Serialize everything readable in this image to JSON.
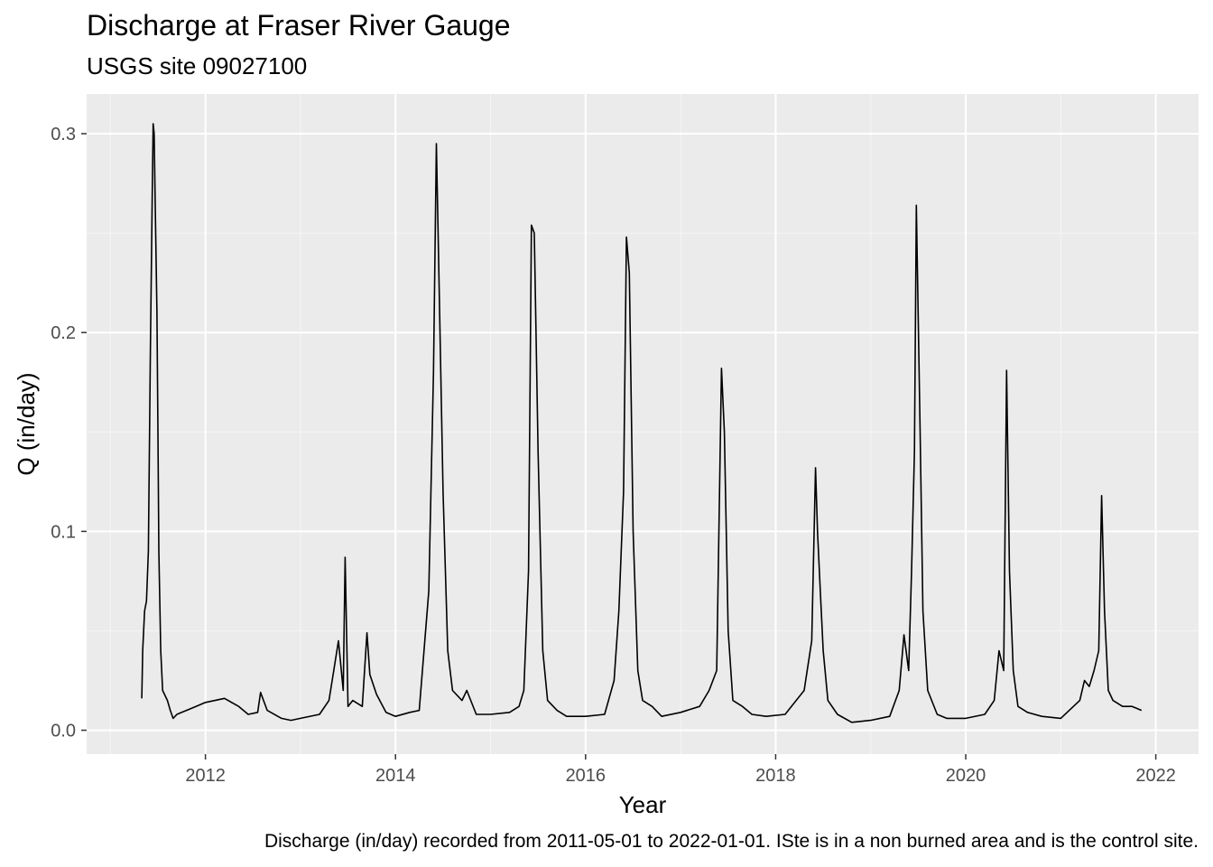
{
  "chart_data": {
    "type": "line",
    "title": "Discharge at Fraser River Gauge",
    "subtitle": "USGS site 09027100",
    "xlabel": "Year",
    "ylabel": "Q (in/day)",
    "caption": "Discharge (in/day) recorded from 2011-05-01 to 2022-01-01. ISte is in a non burned area and is the control site.",
    "xlim": [
      2010.75,
      2022.45
    ],
    "ylim": [
      -0.012,
      0.32
    ],
    "x_ticks": [
      2012,
      2014,
      2016,
      2018,
      2020,
      2022
    ],
    "x_tick_labels": [
      "2012",
      "2014",
      "2016",
      "2018",
      "2020",
      "2022"
    ],
    "y_ticks": [
      0.0,
      0.1,
      0.2,
      0.3
    ],
    "y_tick_labels": [
      "0.0",
      "0.1",
      "0.2",
      "0.3"
    ],
    "grid": true,
    "series": [
      {
        "color": "#000000",
        "x": [
          2011.33,
          2011.34,
          2011.36,
          2011.38,
          2011.4,
          2011.42,
          2011.44,
          2011.45,
          2011.46,
          2011.47,
          2011.49,
          2011.5,
          2011.51,
          2011.53,
          2011.55,
          2011.57,
          2011.6,
          2011.63,
          2011.66,
          2011.7,
          2011.75,
          2011.8,
          2011.9,
          2012.0,
          2012.2,
          2012.35,
          2012.45,
          2012.55,
          2012.58,
          2012.65,
          2012.8,
          2012.9,
          2013.0,
          2013.2,
          2013.3,
          2013.35,
          2013.4,
          2013.45,
          2013.47,
          2013.5,
          2013.55,
          2013.65,
          2013.7,
          2013.73,
          2013.8,
          2013.9,
          2014.0,
          2014.15,
          2014.25,
          2014.3,
          2014.35,
          2014.4,
          2014.43,
          2014.46,
          2014.5,
          2014.55,
          2014.6,
          2014.7,
          2014.75,
          2014.85,
          2015.0,
          2015.2,
          2015.3,
          2015.35,
          2015.4,
          2015.43,
          2015.46,
          2015.5,
          2015.55,
          2015.6,
          2015.7,
          2015.8,
          2016.0,
          2016.2,
          2016.3,
          2016.35,
          2016.4,
          2016.43,
          2016.46,
          2016.5,
          2016.55,
          2016.6,
          2016.7,
          2016.8,
          2017.0,
          2017.2,
          2017.3,
          2017.38,
          2017.43,
          2017.46,
          2017.5,
          2017.55,
          2017.65,
          2017.75,
          2017.9,
          2018.1,
          2018.3,
          2018.38,
          2018.42,
          2018.44,
          2018.47,
          2018.5,
          2018.55,
          2018.65,
          2018.8,
          2019.0,
          2019.2,
          2019.3,
          2019.35,
          2019.4,
          2019.43,
          2019.46,
          2019.48,
          2019.52,
          2019.55,
          2019.6,
          2019.7,
          2019.8,
          2020.0,
          2020.2,
          2020.3,
          2020.35,
          2020.4,
          2020.43,
          2020.46,
          2020.5,
          2020.55,
          2020.65,
          2020.8,
          2021.0,
          2021.2,
          2021.25,
          2021.3,
          2021.35,
          2021.4,
          2021.43,
          2021.46,
          2021.5,
          2021.55,
          2021.65,
          2021.75,
          2021.8,
          2021.85
        ],
        "y": [
          0.016,
          0.04,
          0.06,
          0.065,
          0.09,
          0.19,
          0.27,
          0.305,
          0.3,
          0.27,
          0.21,
          0.15,
          0.09,
          0.04,
          0.02,
          0.018,
          0.015,
          0.01,
          0.006,
          0.008,
          0.009,
          0.01,
          0.012,
          0.014,
          0.016,
          0.012,
          0.008,
          0.009,
          0.019,
          0.01,
          0.006,
          0.005,
          0.006,
          0.008,
          0.015,
          0.03,
          0.045,
          0.02,
          0.087,
          0.012,
          0.015,
          0.012,
          0.049,
          0.028,
          0.018,
          0.009,
          0.007,
          0.009,
          0.01,
          0.04,
          0.07,
          0.18,
          0.295,
          0.22,
          0.12,
          0.04,
          0.02,
          0.015,
          0.02,
          0.008,
          0.008,
          0.009,
          0.012,
          0.02,
          0.08,
          0.254,
          0.25,
          0.14,
          0.04,
          0.015,
          0.01,
          0.007,
          0.007,
          0.008,
          0.025,
          0.06,
          0.12,
          0.248,
          0.23,
          0.1,
          0.03,
          0.015,
          0.012,
          0.007,
          0.009,
          0.012,
          0.02,
          0.03,
          0.182,
          0.15,
          0.05,
          0.015,
          0.012,
          0.008,
          0.007,
          0.008,
          0.02,
          0.045,
          0.132,
          0.1,
          0.07,
          0.04,
          0.015,
          0.008,
          0.004,
          0.005,
          0.007,
          0.02,
          0.048,
          0.03,
          0.08,
          0.14,
          0.264,
          0.15,
          0.06,
          0.02,
          0.008,
          0.006,
          0.006,
          0.008,
          0.015,
          0.04,
          0.03,
          0.181,
          0.08,
          0.03,
          0.012,
          0.009,
          0.007,
          0.006,
          0.015,
          0.025,
          0.022,
          0.03,
          0.04,
          0.118,
          0.06,
          0.02,
          0.015,
          0.012,
          0.012,
          0.011,
          0.01
        ]
      }
    ]
  }
}
